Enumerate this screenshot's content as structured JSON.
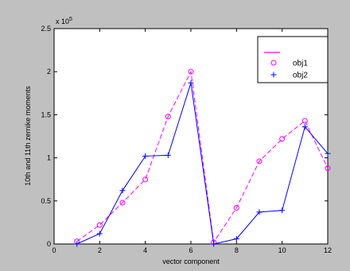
{
  "chart_data": {
    "type": "line",
    "xlabel": "vector component",
    "ylabel": "10th and 11th zernike moments",
    "scale_note": "x 10",
    "scale_exp": "5",
    "xlim": [
      0,
      12
    ],
    "ylim": [
      0,
      2.5
    ],
    "x_ticks": [
      "0",
      "2",
      "4",
      "6",
      "8",
      "10",
      "12"
    ],
    "y_ticks": [
      "0",
      "0.5",
      "1",
      "1.5",
      "2",
      "2.5"
    ],
    "grid": false,
    "legend_position": "top-right",
    "series": [
      {
        "name": "obj1",
        "color": "#ff00ff",
        "line": "dashed",
        "marker": "circle",
        "x": [
          1,
          2,
          3,
          4,
          5,
          6,
          7,
          8,
          9,
          10,
          11,
          12
        ],
        "values": [
          0.03,
          0.22,
          0.48,
          0.75,
          1.48,
          2.0,
          0.02,
          0.42,
          0.96,
          1.22,
          1.43,
          0.88
        ]
      },
      {
        "name": "obj2",
        "color": "#0000ff",
        "line": "solid",
        "marker": "plus",
        "x": [
          1,
          2,
          3,
          4,
          5,
          6,
          7,
          8,
          9,
          10,
          11,
          12
        ],
        "values": [
          0.0,
          0.12,
          0.62,
          1.02,
          1.03,
          1.87,
          0.0,
          0.06,
          0.37,
          0.39,
          1.36,
          1.05
        ]
      }
    ]
  }
}
